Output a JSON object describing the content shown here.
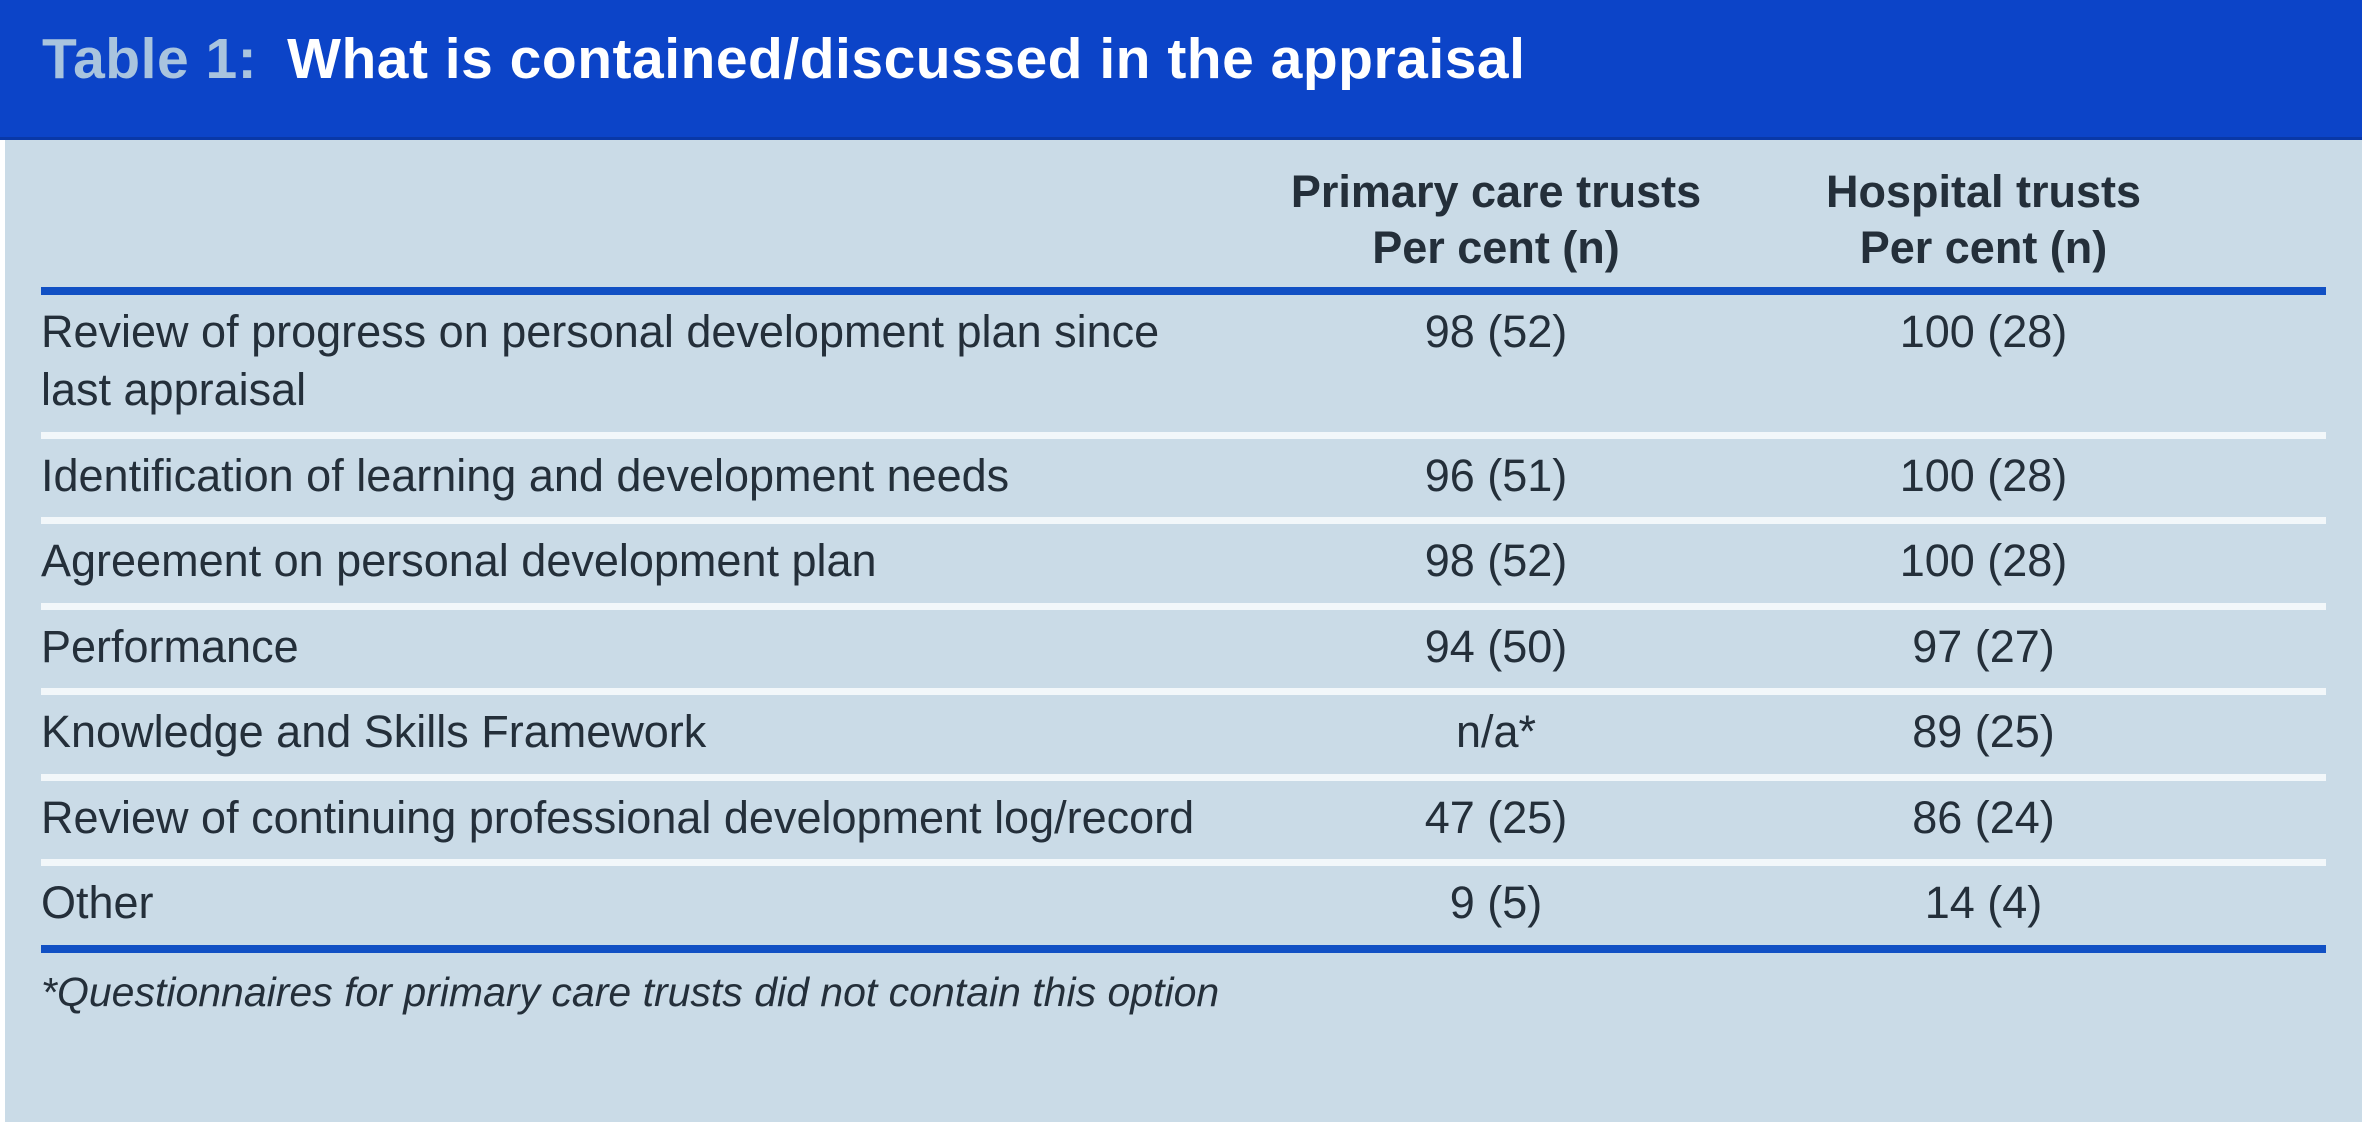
{
  "header": {
    "label": "Table 1:",
    "title": "What is contained/discussed in the appraisal"
  },
  "table": {
    "row_header_column": "",
    "columns": [
      {
        "line1": "Primary care trusts",
        "line2": "Per cent (n)"
      },
      {
        "line1": "Hospital trusts",
        "line2": "Per cent (n)"
      }
    ],
    "rows": [
      {
        "label": "Review of progress on personal development plan since last appraisal",
        "primary": "98 (52)",
        "hospital": "100 (28)"
      },
      {
        "label": "Identification of learning and development needs",
        "primary": "96 (51)",
        "hospital": "100 (28)"
      },
      {
        "label": "Agreement on personal development plan",
        "primary": "98 (52)",
        "hospital": "100 (28)"
      },
      {
        "label": "Performance",
        "primary": "94 (50)",
        "hospital": "97 (27)"
      },
      {
        "label": "Knowledge and Skills Framework",
        "primary": "n/a*",
        "hospital": "89 (25)"
      },
      {
        "label": "Review of continuing professional development log/record",
        "primary": "47 (25)",
        "hospital": "86 (24)"
      },
      {
        "label": "Other",
        "primary": "9 (5)",
        "hospital": "14 (4)"
      }
    ],
    "footnote": "*Questionnaires for primary care trusts did not contain this option"
  },
  "colors": {
    "header_bar": "#0c44c8",
    "header_label": "#a9c4de",
    "panel_background": "#cadbe7",
    "rule_blue": "#1150c4",
    "row_separator": "#f2f7fa",
    "text": "#242f3a"
  },
  "chart_data": {
    "type": "table",
    "title": "Table 1: What is contained/discussed in the appraisal",
    "columns": [
      "Item",
      "Primary care trusts Per cent (n)",
      "Hospital trusts Per cent (n)"
    ],
    "rows": [
      [
        "Review of progress on personal development plan since last appraisal",
        "98 (52)",
        "100 (28)"
      ],
      [
        "Identification of learning and development needs",
        "96 (51)",
        "100 (28)"
      ],
      [
        "Agreement on personal development plan",
        "98 (52)",
        "100 (28)"
      ],
      [
        "Performance",
        "94 (50)",
        "97 (27)"
      ],
      [
        "Knowledge and Skills Framework",
        "n/a*",
        "89 (25)"
      ],
      [
        "Review of continuing professional development log/record",
        "47 (25)",
        "86 (24)"
      ],
      [
        "Other",
        "9 (5)",
        "14 (4)"
      ]
    ],
    "footnote": "*Questionnaires for primary care trusts did not contain this option"
  }
}
